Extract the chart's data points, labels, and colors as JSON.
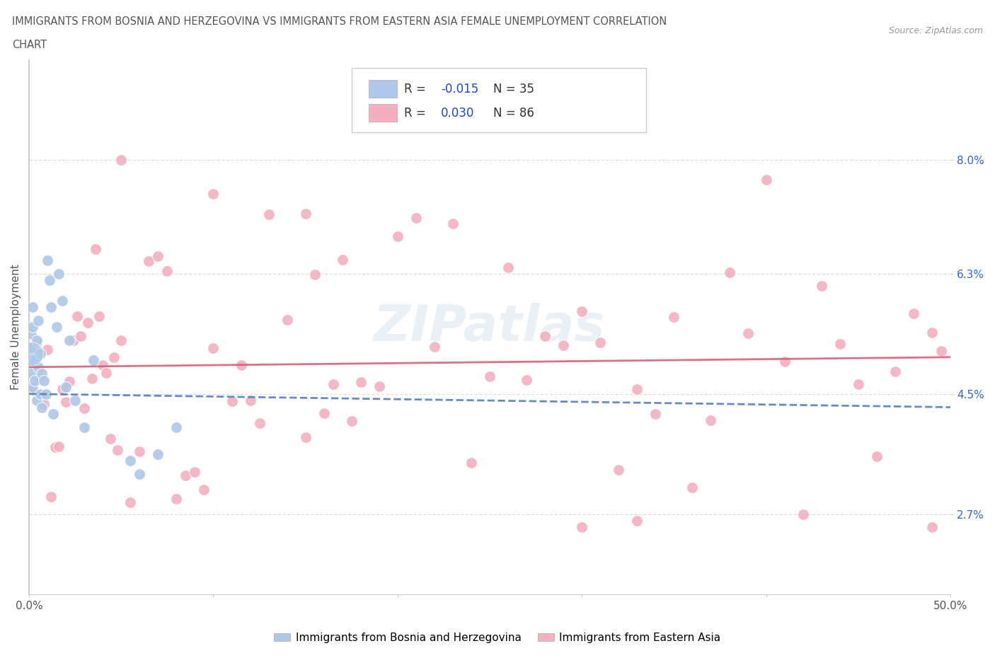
{
  "title_line1": "IMMIGRANTS FROM BOSNIA AND HERZEGOVINA VS IMMIGRANTS FROM EASTERN ASIA FEMALE UNEMPLOYMENT CORRELATION",
  "title_line2": "CHART",
  "source": "Source: ZipAtlas.com",
  "ylabel": "Female Unemployment",
  "xlim": [
    0.0,
    0.5
  ],
  "ylim": [
    0.015,
    0.095
  ],
  "xticks": [
    0.0,
    0.1,
    0.2,
    0.3,
    0.4,
    0.5
  ],
  "xticklabels": [
    "0.0%",
    "",
    "",
    "",
    "",
    "50.0%"
  ],
  "yticks": [
    0.027,
    0.045,
    0.063,
    0.08
  ],
  "yticklabels": [
    "2.7%",
    "4.5%",
    "6.3%",
    "8.0%"
  ],
  "bosnia_R": -0.015,
  "bosnia_N": 35,
  "eastasia_R": 0.03,
  "eastasia_N": 86,
  "bosnia_color": "#adc8e8",
  "eastasia_color": "#f4afc0",
  "bosnia_trend_color": "#5580bb",
  "eastasia_trend_color": "#d9607a",
  "background_color": "#ffffff",
  "legend_R_color": "#2244cc",
  "watermark_color": "#e0e8f0",
  "title_color": "#555555",
  "source_color": "#999999",
  "ytick_color": "#3366cc",
  "xtick_color": "#555555",
  "grid_color": "#dddddd",
  "ylabel_color": "#555555"
}
